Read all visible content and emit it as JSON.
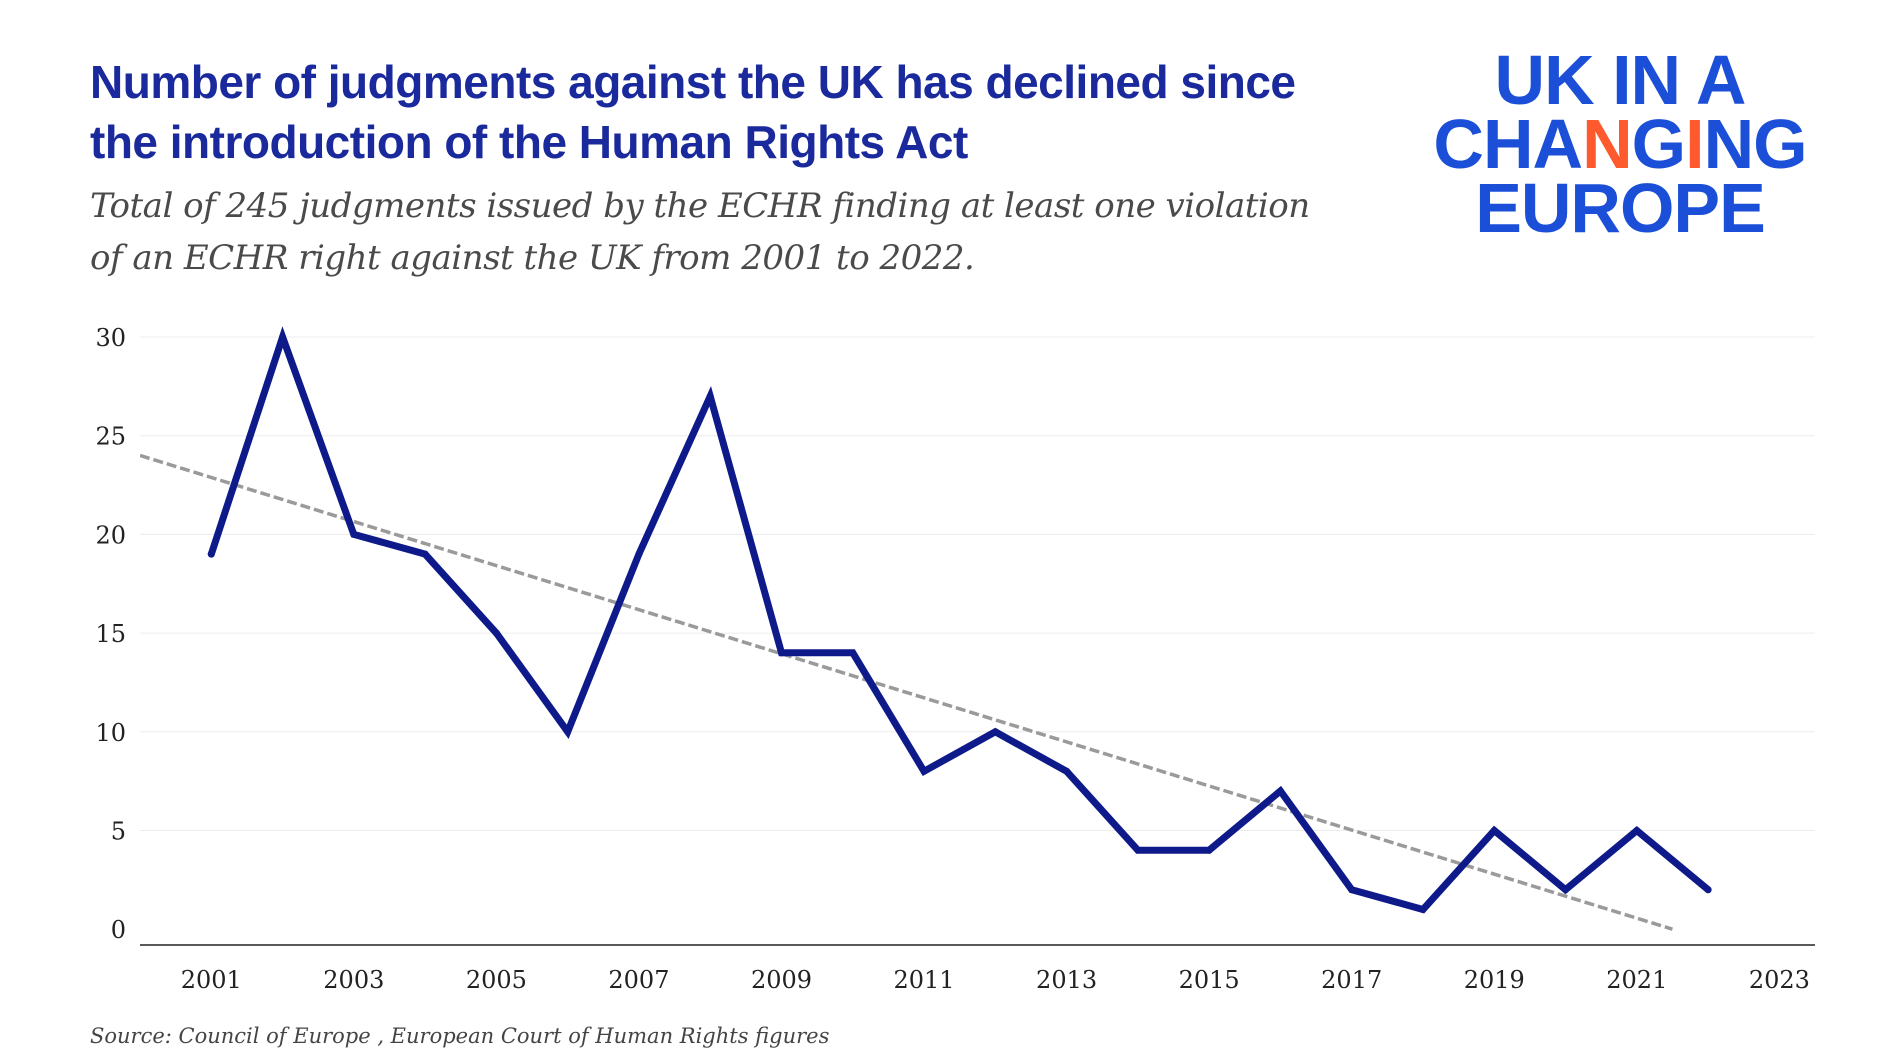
{
  "header": {
    "title": "Number of judgments against the UK has declined since the introduction of the Human Rights Act",
    "subtitle": "Total of 245 judgments issued by the ECHR finding at least one violation of an ECHR right against the UK from 2001 to 2022."
  },
  "logo": {
    "line1": "UK IN A",
    "line2_parts": [
      "CH",
      "A",
      "N",
      "G",
      "I",
      "NG"
    ],
    "line3": "EUROPE",
    "colors": {
      "main": "#1b4fd8",
      "accent": "#ff5a2e"
    }
  },
  "footer": {
    "source": "Source: Council of Europe , European Court of Human Rights figures"
  },
  "chart_data": {
    "type": "line",
    "title": "",
    "xlabel": "",
    "ylabel": "",
    "x": [
      2001,
      2002,
      2003,
      2004,
      2005,
      2006,
      2007,
      2008,
      2009,
      2010,
      2011,
      2012,
      2013,
      2014,
      2015,
      2016,
      2017,
      2018,
      2019,
      2020,
      2021,
      2022
    ],
    "series": [
      {
        "values": [
          19,
          30,
          20,
          19,
          15,
          10,
          19,
          27,
          14,
          14,
          8,
          10,
          8,
          4,
          4,
          7,
          2,
          1,
          5,
          2,
          5,
          2
        ],
        "color": "#0e1a8a"
      }
    ],
    "trendline": {
      "style": "dashed",
      "color": "#9a9a9a",
      "points": [
        [
          2000,
          24
        ],
        [
          2021.5,
          0
        ]
      ]
    },
    "xlim": [
      2000,
      2023.5
    ],
    "ylim": [
      -0.8,
      30
    ],
    "xticks": [
      2001,
      2003,
      2005,
      2007,
      2009,
      2011,
      2013,
      2015,
      2017,
      2019,
      2021,
      2023
    ],
    "xtick_labels": [
      "2001",
      "2003",
      "2005",
      "2007",
      "2009",
      "2011",
      "2013",
      "2015",
      "2017",
      "2019",
      "2021",
      "2023"
    ],
    "yticks": [
      0,
      5,
      10,
      15,
      20,
      25,
      30
    ],
    "ytick_labels": [
      "0",
      "5",
      "10",
      "15",
      "20",
      "25",
      "30"
    ],
    "grid": "horizontal",
    "legend": "none"
  }
}
